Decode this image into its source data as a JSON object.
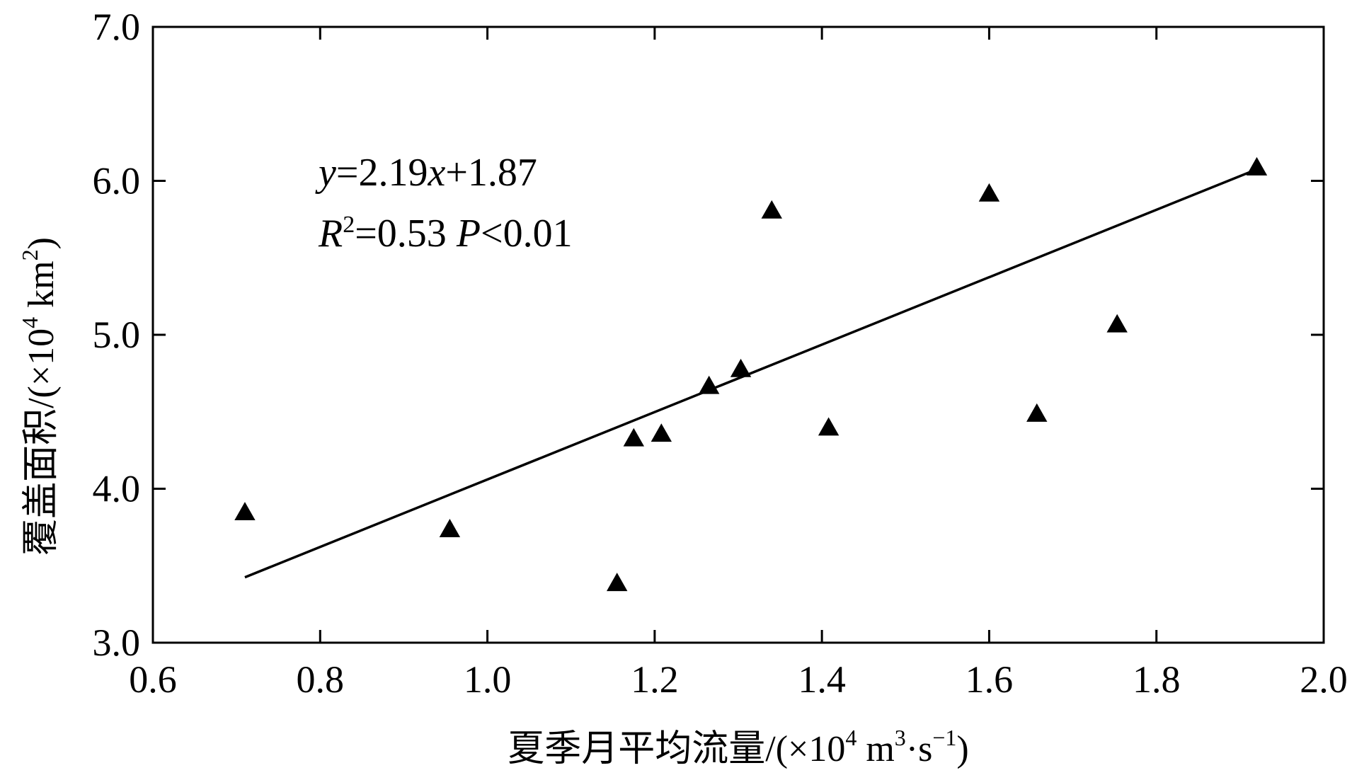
{
  "chart_data": {
    "type": "scatter",
    "xlabel": {
      "prefix": "夏季月平均流量/(×10",
      "exp1": "4",
      "mid": " m",
      "exp2": "3",
      "mid2": "·s",
      "exp3": "−1",
      "suffix": ")"
    },
    "ylabel": {
      "prefix": "覆盖面积/(×10",
      "exp1": "4",
      "mid": " km",
      "exp2": "2",
      "suffix": ")"
    },
    "xlim": [
      0.6,
      2.0
    ],
    "ylim": [
      3.0,
      7.0
    ],
    "x_ticks": [
      0.6,
      0.8,
      1.0,
      1.2,
      1.4,
      1.6,
      1.8,
      2.0
    ],
    "x_tick_labels": [
      "0.6",
      "0.8",
      "1.0",
      "1.2",
      "1.4",
      "1.6",
      "1.8",
      "2.0"
    ],
    "y_ticks": [
      3.0,
      4.0,
      5.0,
      6.0,
      7.0
    ],
    "y_tick_labels": [
      "3.0",
      "4.0",
      "5.0",
      "6.0",
      "7.0"
    ],
    "marker": "triangle",
    "grid": false,
    "points": [
      {
        "x": 0.71,
        "y": 3.85
      },
      {
        "x": 0.955,
        "y": 3.74
      },
      {
        "x": 1.155,
        "y": 3.39
      },
      {
        "x": 1.175,
        "y": 4.33
      },
      {
        "x": 1.208,
        "y": 4.36
      },
      {
        "x": 1.265,
        "y": 4.67
      },
      {
        "x": 1.303,
        "y": 4.78
      },
      {
        "x": 1.34,
        "y": 5.81
      },
      {
        "x": 1.408,
        "y": 4.4
      },
      {
        "x": 1.6,
        "y": 5.92
      },
      {
        "x": 1.657,
        "y": 4.49
      },
      {
        "x": 1.753,
        "y": 5.07
      },
      {
        "x": 1.92,
        "y": 6.09
      }
    ],
    "fit_line": {
      "slope": 2.19,
      "intercept": 1.87,
      "x_range": [
        0.71,
        1.92
      ]
    },
    "annotation": {
      "line1": {
        "y": "y",
        "eq1": "=2.19",
        "x": "x",
        "eq2": "+1.87"
      },
      "line2": {
        "r": "R",
        "r_exp": "2",
        "eq": "=0.53 ",
        "p": "P",
        "p_eq": "<0.01"
      }
    }
  }
}
